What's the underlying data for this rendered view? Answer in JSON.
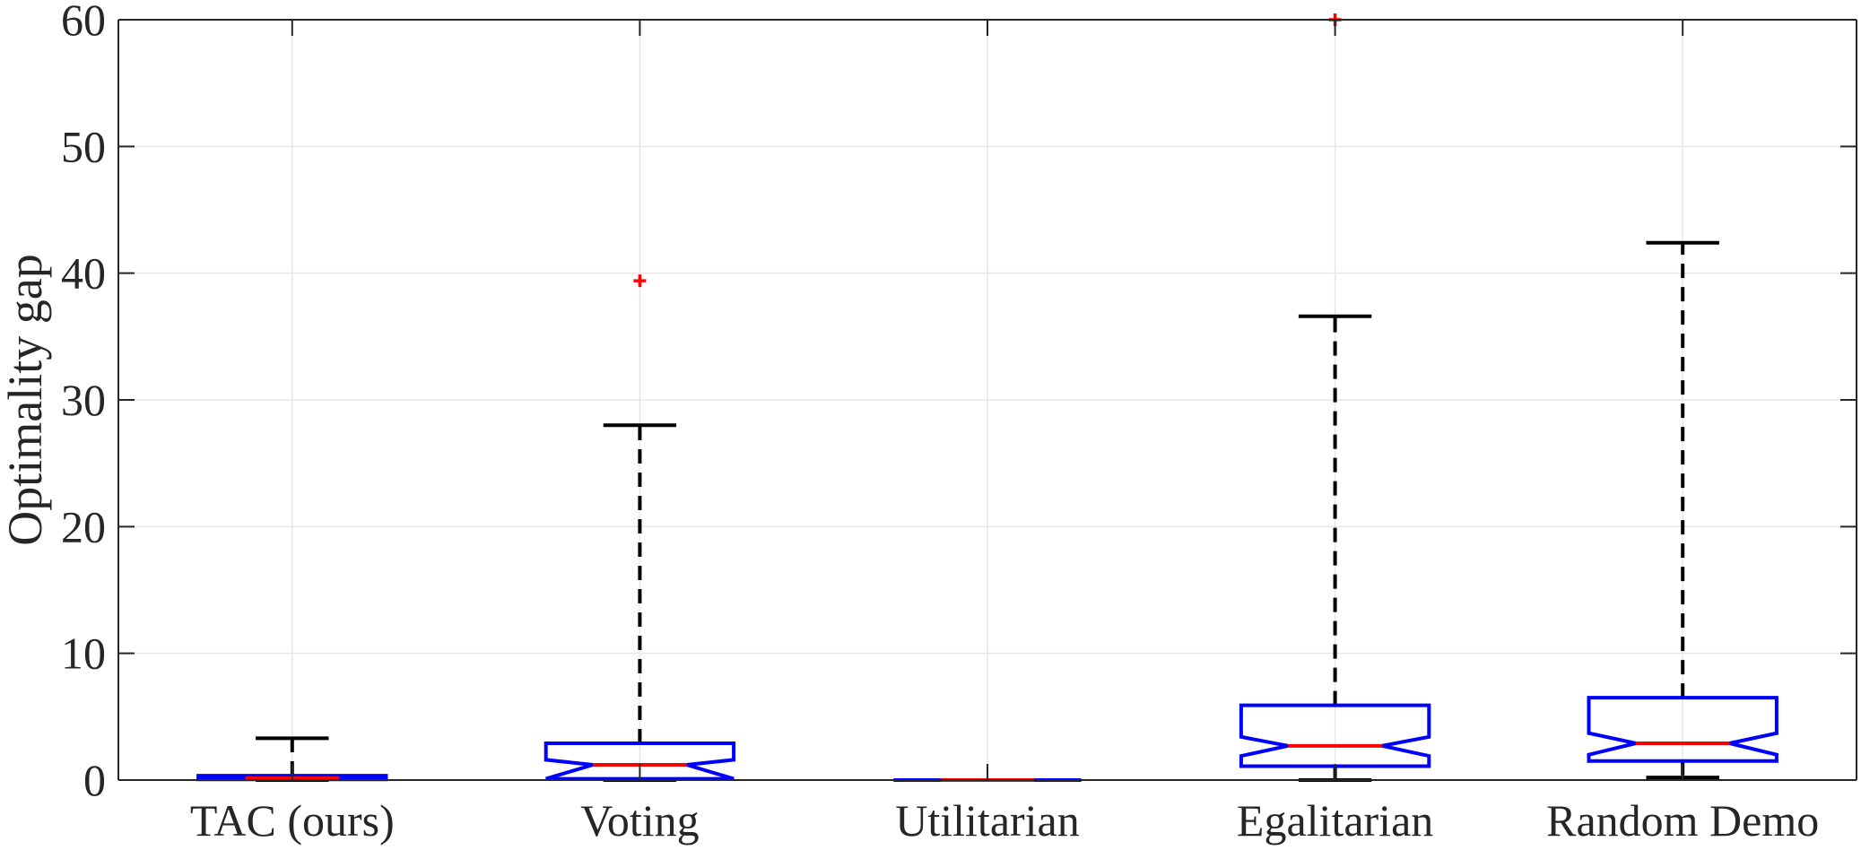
{
  "chart_data": {
    "type": "boxplot",
    "title": "",
    "xlabel": "",
    "ylabel": "Optimality gap",
    "ylim": [
      0,
      60
    ],
    "yticks": [
      0,
      10,
      20,
      30,
      40,
      50,
      60
    ],
    "ytick_labels": [
      "0",
      "10",
      "20",
      "30",
      "40",
      "50",
      "60"
    ],
    "grid": true,
    "notched": true,
    "categories": [
      "TAC (ours)",
      "Voting",
      "Utilitarian",
      "Egalitarian",
      "Random Demo"
    ],
    "colors": {
      "box": "#0000ff",
      "median": "#ff0000",
      "whisker": "#000000",
      "outlier": "#ff0000",
      "grid": "#e6e6e6",
      "axis": "#262626"
    },
    "boxes": [
      {
        "label": "TAC (ours)",
        "min": 0,
        "q1": 0.05,
        "median": 0.15,
        "q3": 0.35,
        "max": 3.3,
        "notch_low": 0.1,
        "notch_high": 0.2,
        "outliers": []
      },
      {
        "label": "Voting",
        "min": 0,
        "q1": 0.1,
        "median": 1.2,
        "q3": 2.9,
        "max": 28.0,
        "notch_low": 0.1,
        "notch_high": 1.6,
        "outliers": [
          39.4
        ]
      },
      {
        "label": "Utilitarian",
        "min": 0,
        "q1": 0,
        "median": 0,
        "q3": 0,
        "max": 0,
        "notch_low": 0,
        "notch_high": 0,
        "outliers": []
      },
      {
        "label": "Egalitarian",
        "min": 0,
        "q1": 1.1,
        "median": 2.7,
        "q3": 5.9,
        "max": 36.6,
        "notch_low": 1.9,
        "notch_high": 3.4,
        "outliers": [
          60.0
        ]
      },
      {
        "label": "Random Demo",
        "min": 0.2,
        "q1": 1.5,
        "median": 2.9,
        "q3": 6.5,
        "max": 42.4,
        "notch_low": 2.0,
        "notch_high": 3.7,
        "outliers": []
      }
    ]
  }
}
